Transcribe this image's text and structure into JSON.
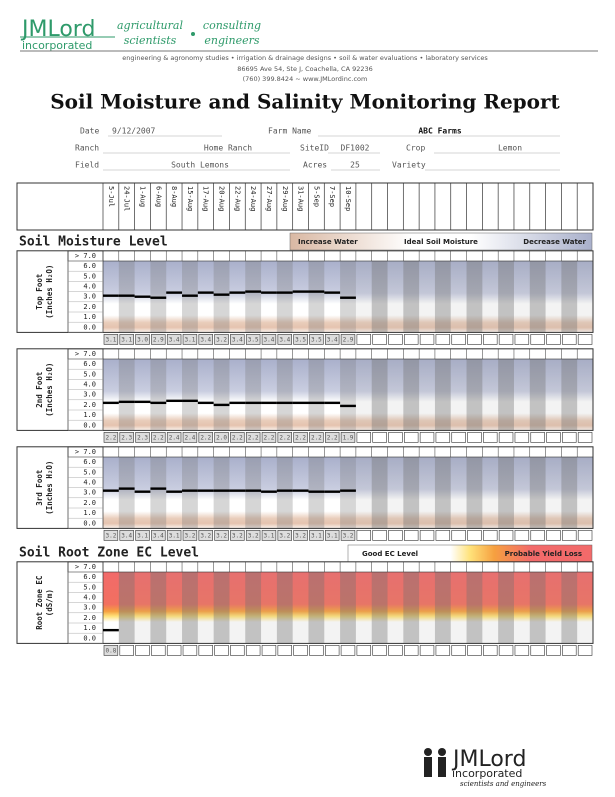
{
  "header": {
    "logo": "JMLord",
    "logo_sub": "incorporated",
    "tag1": "agricultural",
    "tag1b": "scientists",
    "tag2": "consulting",
    "tag2b": "engineers",
    "services": "engineering & agronomy studies • irrigation & drainage designs • soil & water evaluations • laboratory services",
    "address": "86695 Ave 54, Ste J, Coachella, CA  92236",
    "contact": "(760) 399.8424 ~ www.JMLordinc.com"
  },
  "title": "Soil Moisture and Salinity Monitoring Report",
  "fields": [
    {
      "label": "Date",
      "value": "9/12/2007"
    },
    {
      "label": "Farm Name",
      "value": "ABC Farms"
    },
    {
      "label": "Ranch",
      "value": "Home Ranch"
    },
    {
      "label": "SiteID",
      "value": "DF1002"
    },
    {
      "label": "Crop",
      "value": "Lemon"
    },
    {
      "label": "Field",
      "value": "South Lemons"
    },
    {
      "label": "Acres",
      "value": "25"
    },
    {
      "label": "Variety"
    }
  ],
  "dates": [
    "5-Jul",
    "24-Jul",
    "1-Aug",
    "6-Aug",
    "8-Aug",
    "15-Aug",
    "17-Aug",
    "20-Aug",
    "22-Aug",
    "24-Aug",
    "27-Aug",
    "29-Aug",
    "31-Aug",
    "5-Sep",
    "7-Sep",
    "10-Sep"
  ],
  "moisture": {
    "title": "Soil Moisture Level",
    "legend": [
      "Increase Water",
      "Ideal Soil Moisture",
      "Decrease Water"
    ]
  },
  "ec": {
    "title": "Soil Root Zone EC Level",
    "legend": [
      "Good EC Level",
      "Probable Yield Loss"
    ]
  },
  "chart_data": [
    {
      "type": "line",
      "ylabel": [
        "Top Foot",
        "(Inches H₂O)"
      ],
      "band": "moist",
      "values": [
        3.1,
        3.1,
        3.0,
        2.9,
        3.4,
        3.1,
        3.4,
        3.2,
        3.4,
        3.5,
        3.4,
        3.4,
        3.5,
        3.5,
        3.4,
        2.9
      ],
      "value_labels": [
        "3.1",
        "3.1",
        "3.0",
        "2.9",
        "3.4",
        "3.1",
        "3.4",
        "3.2",
        "3.4",
        "3.5",
        "3.4",
        "3.4",
        "3.5",
        "3.5",
        "3.4",
        "2.9"
      ],
      "ylim": [
        -0.5,
        6.5
      ],
      "yticks": [
        {
          "value": 7,
          "label": "> 7.0"
        },
        {
          "value": 6,
          "label": "6.0"
        },
        {
          "value": 5,
          "label": "5.0"
        },
        {
          "value": 4,
          "label": "4.0"
        },
        {
          "value": 3,
          "label": "3.0"
        },
        {
          "value": 2,
          "label": "2.0"
        },
        {
          "value": 1,
          "label": "1.0"
        },
        {
          "value": 0,
          "label": "0.0"
        }
      ]
    },
    {
      "type": "line",
      "ylabel": [
        "2nd Foot",
        "(Inches H₂O)"
      ],
      "band": "moist",
      "values": [
        2.2,
        2.3,
        2.3,
        2.2,
        2.4,
        2.4,
        2.2,
        2.0,
        2.2,
        2.2,
        2.2,
        2.2,
        2.2,
        2.2,
        2.2,
        1.9
      ],
      "value_labels": [
        "2.2",
        "2.3",
        "2.3",
        "2.2",
        "2.4",
        "2.4",
        "2.2",
        "2.0",
        "2.2",
        "2.2",
        "2.2",
        "2.2",
        "2.2",
        "2.2",
        "2.2",
        "1.9"
      ],
      "ylim": [
        -0.5,
        6.5
      ],
      "yticks": [
        {
          "value": 7,
          "label": "> 7.0"
        },
        {
          "value": 6,
          "label": "6.0"
        },
        {
          "value": 5,
          "label": "5.0"
        },
        {
          "value": 4,
          "label": "4.0"
        },
        {
          "value": 3,
          "label": "3.0"
        },
        {
          "value": 2,
          "label": "2.0"
        },
        {
          "value": 1,
          "label": "1.0"
        },
        {
          "value": 0,
          "label": "0.0"
        }
      ]
    },
    {
      "type": "line",
      "ylabel": [
        "3rd Foot",
        "(Inches H₂O)"
      ],
      "band": "moist",
      "values": [
        3.2,
        3.4,
        3.1,
        3.4,
        3.1,
        3.2,
        3.2,
        3.2,
        3.2,
        3.2,
        3.1,
        3.2,
        3.2,
        3.1,
        3.1,
        3.2
      ],
      "value_labels": [
        "3.2",
        "3.4",
        "3.1",
        "3.4",
        "3.1",
        "3.2",
        "3.2",
        "3.2",
        "3.2",
        "3.2",
        "3.1",
        "3.2",
        "3.2",
        "3.1",
        "3.1",
        "3.2"
      ],
      "ylim": [
        -0.5,
        6.5
      ],
      "yticks": [
        {
          "value": 7,
          "label": "> 7.0"
        },
        {
          "value": 6,
          "label": "6.0"
        },
        {
          "value": 5,
          "label": "5.0"
        },
        {
          "value": 4,
          "label": "4.0"
        },
        {
          "value": 3,
          "label": "3.0"
        },
        {
          "value": 2,
          "label": "2.0"
        },
        {
          "value": 1,
          "label": "1.0"
        },
        {
          "value": 0,
          "label": "0.0"
        }
      ]
    },
    {
      "type": "line",
      "ylabel": [
        "Root Zone EC",
        "(dS/m)"
      ],
      "band": "ec",
      "values": [
        0.8
      ],
      "value_labels": [
        "0.8"
      ],
      "ylim": [
        -0.5,
        6.5
      ],
      "yticks": [
        {
          "value": 7,
          "label": "> 7.0"
        },
        {
          "value": 6,
          "label": "6.0"
        },
        {
          "value": 5,
          "label": "5.0"
        },
        {
          "value": 4,
          "label": "4.0"
        },
        {
          "value": 3,
          "label": "3.0"
        },
        {
          "value": 2,
          "label": "2.0"
        },
        {
          "value": 1,
          "label": "1.0"
        },
        {
          "value": 0,
          "label": "0.0"
        }
      ]
    }
  ],
  "footer": {
    "logo": "JMLord",
    "logo_sub": "incorporated",
    "tagline": "scientists and engineers"
  }
}
